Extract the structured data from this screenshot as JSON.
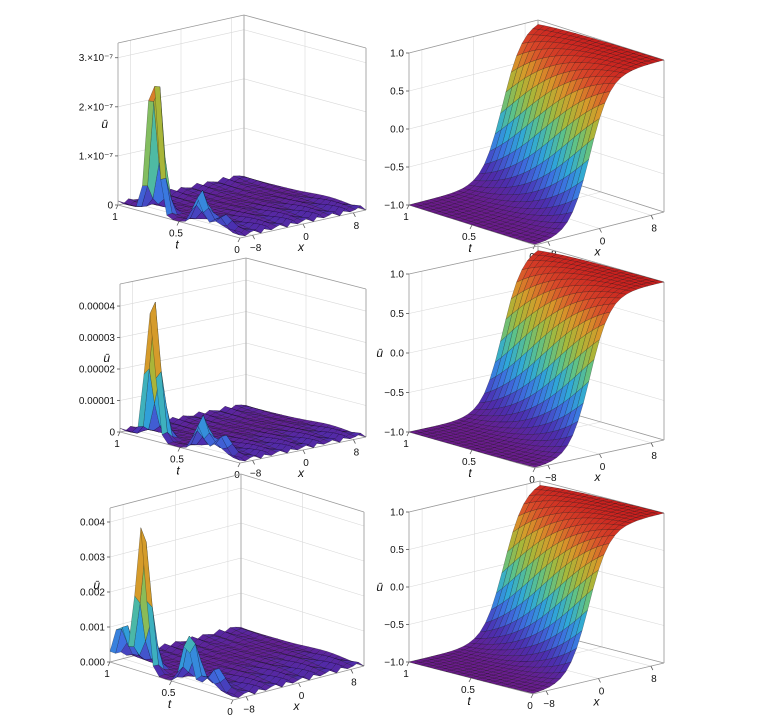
{
  "colors": {
    "background": "#ffffff",
    "colormap": [
      "#6a1b8a",
      "#4b2fb0",
      "#3d6fe0",
      "#2fa8d8",
      "#5cc28a",
      "#a6b83a",
      "#d79a2a",
      "#d94a2a",
      "#c81e1e"
    ]
  },
  "chart_data": [
    {
      "type": "surface3d",
      "panel": "error-row1",
      "colormap": "rainbow",
      "zlabel": "ū",
      "tlabel": "t",
      "xlabel": "x",
      "zticks": [
        0,
        1e-07,
        2e-07,
        3e-07
      ],
      "ztick_labels": [
        "0",
        "1.×10⁻⁷",
        "2.×10⁻⁷",
        "3.×10⁻⁷"
      ],
      "zlim": [
        0,
        3.3e-07
      ],
      "tticks": [
        1,
        0.5,
        0
      ],
      "tick_labels_t": [
        "1",
        "0.5",
        "0"
      ],
      "xticks": [
        -8,
        0,
        8
      ],
      "tick_labels_x": [
        "−8",
        "0",
        "8"
      ],
      "peaks": [
        {
          "t": 0.72,
          "x": -9.6,
          "z": 3.2e-07
        },
        {
          "t": 0.35,
          "x": -9.4,
          "z": 7e-08
        },
        {
          "t": 0.2,
          "x": -9.0,
          "z": 2.5e-08
        }
      ]
    },
    {
      "type": "surface3d",
      "panel": "solution-row1",
      "colormap": "rainbow",
      "zlabel": "",
      "tlabel": "t",
      "xlabel": "x",
      "zticks": [
        -1.0,
        -0.5,
        0.0,
        0.5,
        1.0
      ],
      "ztick_labels": [
        "−1.0",
        "−0.5",
        "0.0",
        "0.5",
        "1.0"
      ],
      "zlim": [
        -1.0,
        1.0
      ],
      "tticks": [
        1,
        0.5,
        0
      ],
      "tick_labels_t": [
        "1",
        "0.5",
        "0"
      ],
      "xticks": [
        -8,
        0,
        8
      ],
      "tick_labels_x": [
        "−8",
        "0",
        "8"
      ]
    },
    {
      "type": "surface3d",
      "panel": "error-row2",
      "colormap": "rainbow",
      "zlabel": "ū",
      "tlabel": "t",
      "xlabel": "x",
      "zticks": [
        0,
        1e-05,
        2e-05,
        3e-05,
        4e-05
      ],
      "ztick_labels": [
        "0",
        "0.00001",
        "0.00002",
        "0.00003",
        "0.00004"
      ],
      "zlim": [
        0,
        4.7e-05
      ],
      "tticks": [
        1,
        0.5,
        0
      ],
      "tick_labels_t": [
        "1",
        "0.5",
        "0"
      ],
      "xticks": [
        -8,
        0,
        8
      ],
      "tick_labels_x": [
        "−8",
        "0",
        "8"
      ],
      "peaks": [
        {
          "t": 0.75,
          "x": -9.5,
          "z": 4.6e-05
        },
        {
          "t": 0.35,
          "x": -9.3,
          "z": 1.1e-05
        },
        {
          "t": 0.2,
          "x": -9.0,
          "z": 6e-06
        }
      ]
    },
    {
      "type": "surface3d",
      "panel": "solution-row2",
      "colormap": "rainbow",
      "zlabel": "ū",
      "tlabel": "t",
      "xlabel": "x",
      "zticks": [
        -1.0,
        -0.5,
        0.0,
        0.5,
        1.0
      ],
      "ztick_labels": [
        "−1.0",
        "−0.5",
        "0.0",
        "0.5",
        "1.0"
      ],
      "zlim": [
        -1.0,
        1.0
      ],
      "tticks": [
        1,
        0.5,
        0
      ],
      "tick_labels_t": [
        "1",
        "0.5",
        "0"
      ],
      "xticks": [
        -8,
        0,
        8
      ],
      "tick_labels_x": [
        "−8",
        "0",
        "8"
      ]
    },
    {
      "type": "surface3d",
      "panel": "error-row3",
      "colormap": "rainbow",
      "zlabel": "ū",
      "tlabel": "t",
      "xlabel": "x",
      "zticks": [
        0,
        0.001,
        0.002,
        0.003,
        0.004
      ],
      "ztick_labels": [
        "0.000",
        "0.001",
        "0.002",
        "0.003",
        "0.004"
      ],
      "zlim": [
        0,
        0.0044
      ],
      "tticks": [
        1,
        0.5,
        0
      ],
      "tick_labels_t": [
        "1",
        "0.5",
        "0"
      ],
      "xticks": [
        -8,
        0,
        8
      ],
      "tick_labels_x": [
        "−8",
        "0",
        "8"
      ],
      "peaks": [
        {
          "t": 0.75,
          "x": -9.7,
          "z": 0.0043
        },
        {
          "t": 0.92,
          "x": -9.5,
          "z": 0.0013
        },
        {
          "t": 0.38,
          "x": -9.4,
          "z": 0.0015
        },
        {
          "t": 0.2,
          "x": -9.0,
          "z": 0.0006
        }
      ]
    },
    {
      "type": "surface3d",
      "panel": "solution-row3",
      "colormap": "rainbow",
      "zlabel": "ū",
      "tlabel": "t",
      "xlabel": "x",
      "zticks": [
        -1.0,
        -0.5,
        0.0,
        0.5,
        1.0
      ],
      "ztick_labels": [
        "−1.0",
        "−0.5",
        "0.0",
        "0.5",
        "1.0"
      ],
      "zlim": [
        -1.0,
        1.0
      ],
      "tticks": [
        1,
        0.5,
        0
      ],
      "tick_labels_t": [
        "1",
        "0.5",
        "0"
      ],
      "xticks": [
        -8,
        0,
        8
      ],
      "tick_labels_x": [
        "−8",
        "0",
        "8"
      ]
    }
  ]
}
